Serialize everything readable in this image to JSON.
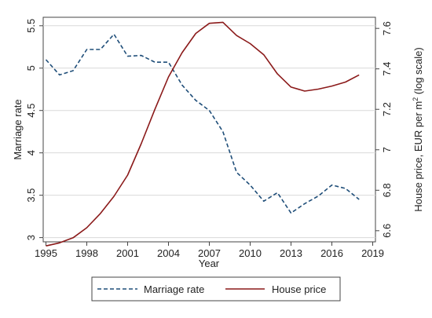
{
  "chart_data": {
    "type": "line",
    "title": "",
    "xlabel": "Year",
    "ylabel_left": "Marriage rate",
    "ylabel_right": "House price, EUR per m",
    "ylabel_right_superscript": "2",
    "ylabel_right_suffix": " (log scale)",
    "x_ticks": [
      "1995",
      "1998",
      "2001",
      "2004",
      "2007",
      "2010",
      "2013",
      "2016",
      "2019"
    ],
    "left_ticks": [
      "3",
      "3.5",
      "4",
      "4.5",
      "5",
      "5.5"
    ],
    "right_ticks": [
      "6.6",
      "6.8",
      "7",
      "7.2",
      "7.4",
      "7.6"
    ],
    "xlim": [
      1994.8,
      2019.2
    ],
    "ylim_left": [
      2.95,
      5.6
    ],
    "ylim_right": [
      6.545,
      7.655
    ],
    "grid": true,
    "legend_position": "bottom",
    "series": [
      {
        "name": "Marriage rate",
        "axis": "left",
        "color": "#1f4e79",
        "style": "dashed",
        "x": [
          1995,
          1996,
          1997,
          1998,
          1999,
          2000,
          2001,
          2002,
          2003,
          2004,
          2005,
          2006,
          2007,
          2008,
          2009,
          2010,
          2011,
          2012,
          2013,
          2014,
          2015,
          2016,
          2017,
          2018
        ],
        "values": [
          5.1,
          4.92,
          4.97,
          5.22,
          5.22,
          5.4,
          5.14,
          5.15,
          5.07,
          5.07,
          4.8,
          4.62,
          4.5,
          4.25,
          3.77,
          3.62,
          3.43,
          3.53,
          3.29,
          3.4,
          3.49,
          3.62,
          3.58,
          3.45
        ]
      },
      {
        "name": "House price",
        "axis": "right",
        "color": "#8b1a1a",
        "style": "solid",
        "x": [
          1995,
          1996,
          1997,
          1998,
          1999,
          2000,
          2001,
          2002,
          2003,
          2004,
          2005,
          2006,
          2007,
          2008,
          2009,
          2010,
          2011,
          2012,
          2013,
          2014,
          2015,
          2016,
          2017,
          2018
        ],
        "values": [
          6.525,
          6.54,
          6.565,
          6.615,
          6.685,
          6.77,
          6.875,
          7.03,
          7.2,
          7.36,
          7.48,
          7.575,
          7.625,
          7.63,
          7.565,
          7.525,
          7.47,
          7.375,
          7.31,
          7.29,
          7.3,
          7.315,
          7.335,
          7.37
        ]
      }
    ]
  }
}
